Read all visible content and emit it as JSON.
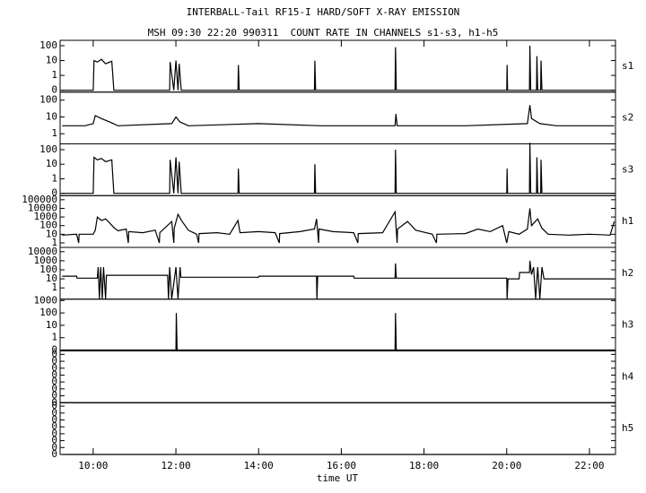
{
  "chart_data": {
    "type": "line",
    "title": "INTERBALL-Tail RF15-I HARD/SOFT X-RAY EMISSION",
    "subtitle": "MSH 09:30 22:20 990311  COUNT RATE IN CHANNELS s1-s3, h1-h5",
    "xlabel": "time UT",
    "xlim": [
      9.2,
      22.63
    ],
    "xticks": [
      {
        "value": 10,
        "label": "10:00"
      },
      {
        "value": 12,
        "label": "12:00"
      },
      {
        "value": 14,
        "label": "14:00"
      },
      {
        "value": 16,
        "label": "16:00"
      },
      {
        "value": 18,
        "label": "18:00"
      },
      {
        "value": 20,
        "label": "20:00"
      },
      {
        "value": 22,
        "label": "22:00"
      }
    ],
    "color": "#000000",
    "panels": [
      {
        "name": "s1",
        "log": true,
        "ylim": [
          0.075,
          230
        ],
        "yticks": [
          {
            "value": 0.1,
            "label": "0"
          },
          1,
          10,
          100
        ],
        "x": [
          9.25,
          10.0,
          10.02,
          10.1,
          10.2,
          10.3,
          10.45,
          10.5,
          11.85,
          11.86,
          11.95,
          12.0,
          12.05,
          12.08,
          12.13,
          13.5,
          13.51,
          13.53,
          15.35,
          15.36,
          15.38,
          17.3,
          17.31,
          17.33,
          20.0,
          20.01,
          20.02,
          20.55,
          20.56,
          20.58,
          20.72,
          20.73,
          20.75,
          20.82,
          20.83,
          20.85,
          22.6
        ],
        "values": [
          0.1,
          0.1,
          10,
          8,
          12,
          6,
          9,
          0.1,
          0.1,
          8,
          0.1,
          10,
          0.1,
          6,
          0.1,
          0.1,
          5,
          0.1,
          0.1,
          10,
          0.1,
          0.1,
          80,
          0.1,
          0.1,
          5,
          0.1,
          0.1,
          100,
          0.1,
          0.1,
          20,
          0.1,
          0.1,
          10,
          0.1,
          0.1
        ]
      },
      {
        "name": "s2",
        "log": true,
        "ylim": [
          0.25,
          300
        ],
        "yticks": [
          1,
          10,
          100
        ],
        "x": [
          9.25,
          9.8,
          10.0,
          10.05,
          10.2,
          10.4,
          10.6,
          11.9,
          12.0,
          12.1,
          12.3,
          14.0,
          15.5,
          17.3,
          17.32,
          17.35,
          19.0,
          20.5,
          20.56,
          20.6,
          20.8,
          21.2,
          22.6
        ],
        "values": [
          3,
          3,
          4,
          12,
          8,
          5,
          3,
          4,
          10,
          5,
          3,
          4,
          3,
          3,
          15,
          3,
          3,
          4,
          50,
          8,
          4,
          3,
          3
        ]
      },
      {
        "name": "s3",
        "log": true,
        "ylim": [
          0.07,
          250
        ],
        "yticks": [
          {
            "value": 0.1,
            "label": "0"
          },
          1,
          10,
          100
        ],
        "x": [
          9.25,
          10.0,
          10.02,
          10.1,
          10.2,
          10.3,
          10.45,
          10.5,
          11.85,
          11.86,
          11.95,
          12.0,
          12.05,
          12.08,
          12.13,
          13.5,
          13.51,
          13.53,
          15.35,
          15.36,
          15.38,
          17.3,
          17.31,
          17.33,
          20.0,
          20.01,
          20.02,
          20.55,
          20.56,
          20.58,
          20.72,
          20.73,
          20.75,
          20.82,
          20.83,
          20.85,
          22.6
        ],
        "values": [
          0.1,
          0.1,
          30,
          20,
          25,
          15,
          20,
          0.1,
          0.1,
          20,
          0.1,
          30,
          0.1,
          15,
          0.1,
          0.1,
          5,
          0.1,
          0.1,
          10,
          0.1,
          0.1,
          100,
          0.1,
          0.1,
          5,
          0.1,
          0.1,
          300,
          0.1,
          0.1,
          30,
          0.1,
          0.1,
          20,
          0.1,
          0.1
        ]
      },
      {
        "name": "h1",
        "log": true,
        "ylim": [
          0.3,
          300000
        ],
        "yticks": [
          1,
          10,
          100,
          1000,
          10000,
          100000
        ],
        "x": [
          9.25,
          9.6,
          9.65,
          9.66,
          10.0,
          10.05,
          10.1,
          10.2,
          10.3,
          10.4,
          10.5,
          10.6,
          10.8,
          10.85,
          10.86,
          11.2,
          11.5,
          11.6,
          11.61,
          11.9,
          11.95,
          11.96,
          12.05,
          12.15,
          12.3,
          12.5,
          12.55,
          12.56,
          13.0,
          13.3,
          13.5,
          13.55,
          14.0,
          14.4,
          14.5,
          14.51,
          15.0,
          15.35,
          15.4,
          15.45,
          15.46,
          15.8,
          16.3,
          16.4,
          16.41,
          17.0,
          17.3,
          17.35,
          17.36,
          17.6,
          17.8,
          18.2,
          18.3,
          18.31,
          19.0,
          19.3,
          19.6,
          19.9,
          20.0,
          20.05,
          20.3,
          20.5,
          20.56,
          20.6,
          20.75,
          20.85,
          21.0,
          21.5,
          22.0,
          22.5,
          22.6
        ],
        "values": [
          8,
          10,
          1,
          10,
          10,
          30,
          1000,
          400,
          600,
          200,
          60,
          25,
          40,
          1,
          20,
          15,
          30,
          1,
          15,
          300,
          1,
          50,
          2000,
          300,
          30,
          10,
          1,
          12,
          15,
          10,
          400,
          15,
          20,
          15,
          1,
          12,
          20,
          40,
          600,
          1,
          40,
          20,
          15,
          1,
          12,
          15,
          4000,
          1,
          40,
          300,
          30,
          10,
          1,
          10,
          12,
          40,
          20,
          100,
          1,
          20,
          10,
          40,
          10000,
          100,
          600,
          50,
          10,
          8,
          10,
          8,
          300
        ]
      },
      {
        "name": "h2",
        "log": true,
        "ylim": [
          0.057,
          30000
        ],
        "yticks": [
          1,
          10,
          100,
          1000,
          10000
        ],
        "x": [
          9.25,
          9.6,
          9.61,
          10.1,
          10.12,
          10.15,
          10.18,
          10.22,
          10.25,
          10.3,
          10.32,
          11.8,
          11.82,
          11.85,
          11.9,
          12.0,
          12.05,
          12.1,
          12.12,
          14.0,
          14.01,
          15.4,
          15.41,
          15.43,
          16.3,
          16.31,
          17.3,
          17.31,
          17.33,
          20.0,
          20.01,
          20.03,
          20.3,
          20.31,
          20.55,
          20.56,
          20.6,
          20.65,
          20.7,
          20.75,
          20.8,
          20.85,
          20.9,
          22.6
        ],
        "values": [
          20,
          20,
          12,
          12,
          200,
          0.06,
          200,
          0.06,
          200,
          0.06,
          25,
          25,
          0.06,
          200,
          0.06,
          200,
          0.06,
          200,
          15,
          15,
          20,
          20,
          0.06,
          20,
          20,
          12,
          12,
          500,
          12,
          12,
          0.06,
          10,
          10,
          50,
          50,
          1000,
          30,
          200,
          0.06,
          200,
          0.06,
          200,
          10,
          10
        ]
      },
      {
        "name": "h3",
        "log": true,
        "ylim": [
          0.085,
          1300
        ],
        "yticks": [
          {
            "value": 0.1,
            "label": "0"
          },
          1,
          10,
          100,
          1000
        ],
        "x": [
          9.25,
          12.0,
          12.01,
          12.03,
          17.3,
          17.31,
          17.33,
          22.6
        ],
        "values": [
          0.1,
          0.1,
          100,
          0.1,
          0.1,
          100,
          0.1,
          0.1
        ]
      },
      {
        "name": "h4",
        "log": false,
        "ylim": [
          0,
          0.0075
        ],
        "yticks": [
          {
            "value": 0,
            "label": "0"
          },
          {
            "value": 0.001,
            "label": "0"
          },
          {
            "value": 0.002,
            "label": "0"
          },
          {
            "value": 0.003,
            "label": "0"
          },
          {
            "value": 0.004,
            "label": "0"
          },
          {
            "value": 0.005,
            "label": "0"
          },
          {
            "value": 0.006,
            "label": "0"
          },
          {
            "value": 0.007,
            "label": "0"
          }
        ],
        "x": [
          9.25,
          22.6
        ],
        "values": [
          0,
          0
        ]
      },
      {
        "name": "h5",
        "log": false,
        "ylim": [
          0,
          0.0075
        ],
        "yticks": [
          {
            "value": 0,
            "label": "0"
          },
          {
            "value": 0.001,
            "label": "0"
          },
          {
            "value": 0.002,
            "label": "0"
          },
          {
            "value": 0.003,
            "label": "0"
          },
          {
            "value": 0.004,
            "label": "0"
          },
          {
            "value": 0.005,
            "label": "0"
          },
          {
            "value": 0.006,
            "label": "0"
          },
          {
            "value": 0.007,
            "label": "0"
          }
        ],
        "x": [
          9.25,
          22.6
        ],
        "values": [
          0,
          0
        ]
      }
    ]
  }
}
